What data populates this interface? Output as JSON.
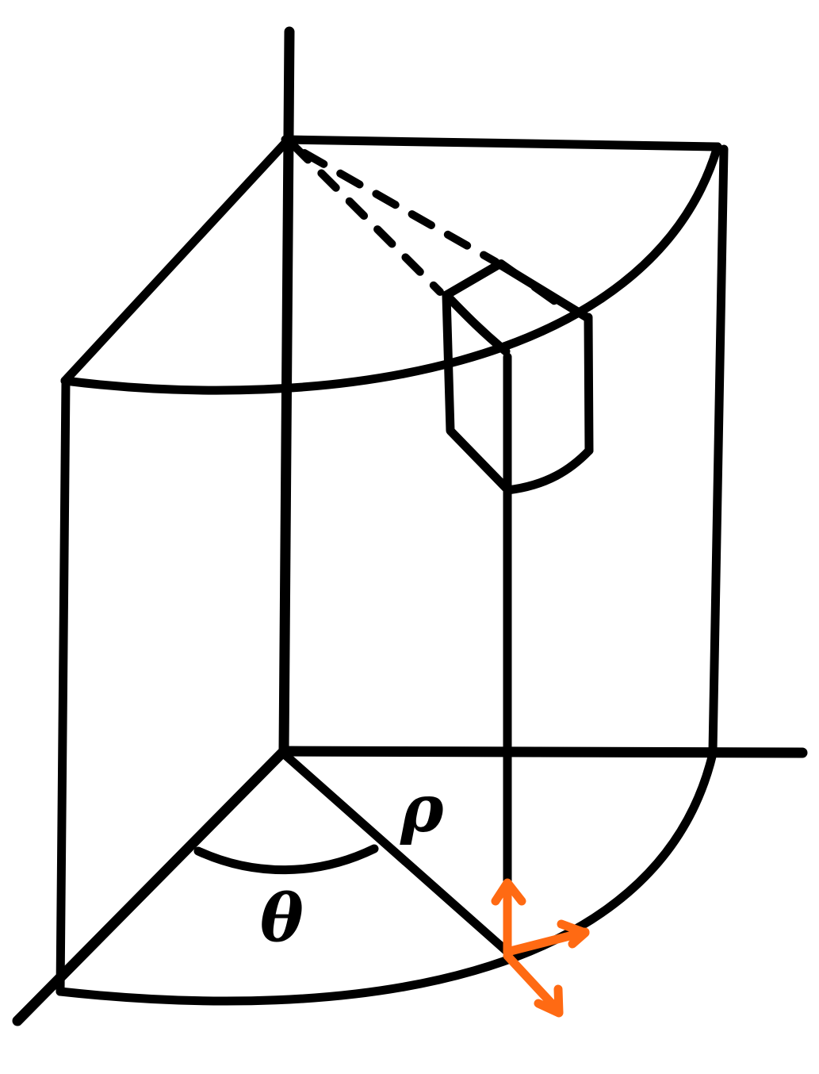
{
  "labels": {
    "rho": "ρ",
    "theta": "θ"
  },
  "colors": {
    "ink": "#000000",
    "unit_vectors": "#ff6a13",
    "background": "#ffffff"
  }
}
